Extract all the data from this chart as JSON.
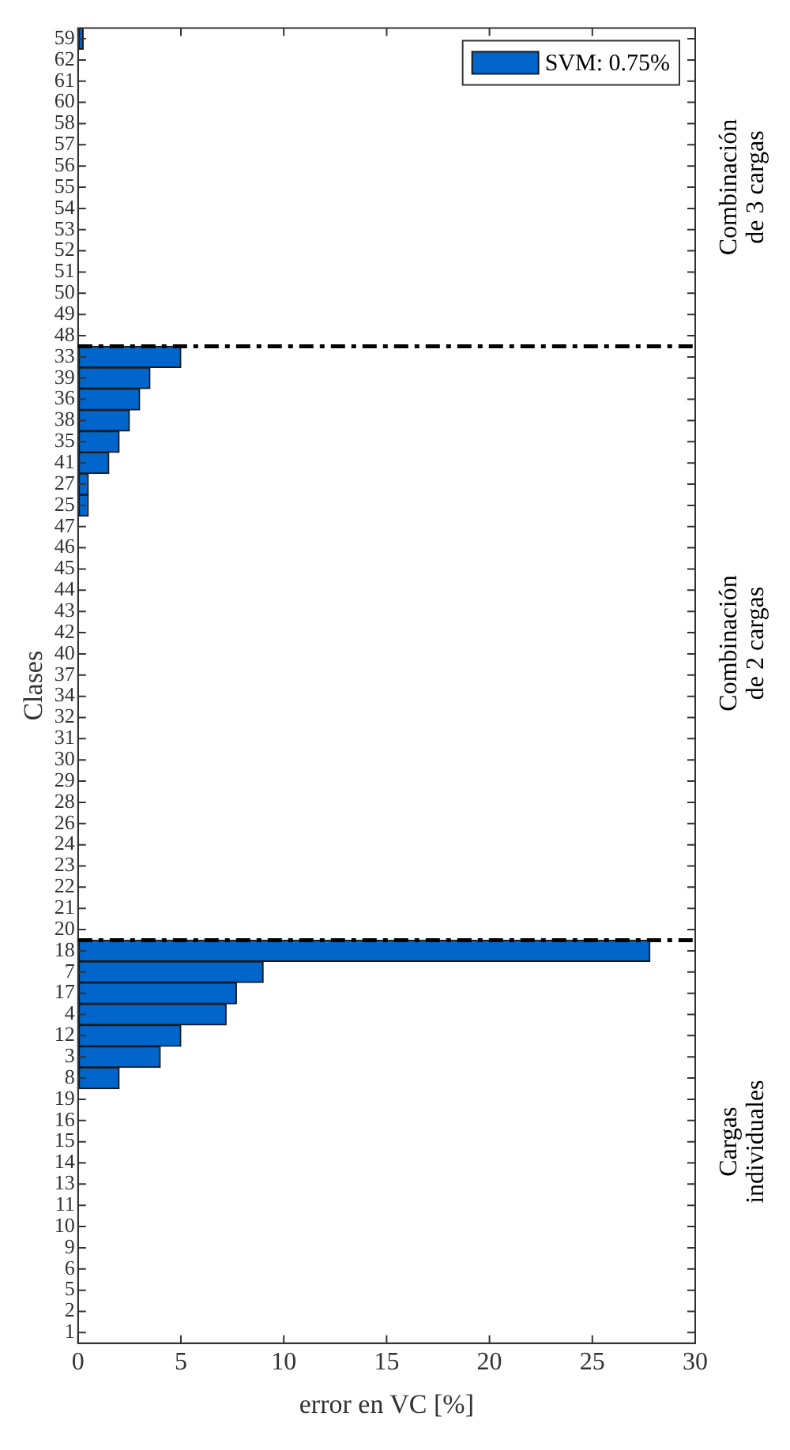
{
  "chart_data": {
    "type": "bar",
    "orientation": "horizontal",
    "xlabel": "error en VC [%]",
    "ylabel": "Clases",
    "categories": [
      "59",
      "62",
      "61",
      "60",
      "58",
      "57",
      "56",
      "55",
      "54",
      "53",
      "52",
      "51",
      "50",
      "49",
      "48",
      "33",
      "39",
      "36",
      "38",
      "35",
      "41",
      "27",
      "25",
      "47",
      "46",
      "45",
      "44",
      "43",
      "42",
      "40",
      "37",
      "34",
      "32",
      "31",
      "30",
      "29",
      "28",
      "26",
      "24",
      "23",
      "22",
      "21",
      "20",
      "18",
      "7",
      "17",
      "4",
      "12",
      "3",
      "8",
      "19",
      "16",
      "15",
      "14",
      "13",
      "11",
      "10",
      "9",
      "6",
      "5",
      "2",
      "1"
    ],
    "series": [
      {
        "name": "SVM: 0.75%",
        "color": "#0066cc",
        "values": [
          0.25,
          null,
          null,
          null,
          null,
          null,
          null,
          null,
          null,
          null,
          null,
          null,
          null,
          null,
          null,
          5,
          3.5,
          3,
          2.5,
          2,
          1.5,
          0.5,
          0.5,
          null,
          null,
          null,
          null,
          null,
          null,
          null,
          null,
          null,
          null,
          null,
          null,
          null,
          null,
          null,
          null,
          null,
          null,
          null,
          null,
          27.8,
          9,
          7.7,
          7.2,
          5,
          4,
          2,
          null,
          null,
          null,
          null,
          null,
          null,
          null,
          null,
          null,
          null,
          null,
          null
        ]
      }
    ],
    "xlim": [
      0,
      30
    ],
    "xticks": [
      0,
      5,
      10,
      15,
      20,
      25,
      30
    ],
    "grid": false,
    "legend": "top right",
    "annotations": [
      "Combinación de 3 cargas",
      "Combinación de 2 cargas",
      "Cargas individuales"
    ]
  }
}
